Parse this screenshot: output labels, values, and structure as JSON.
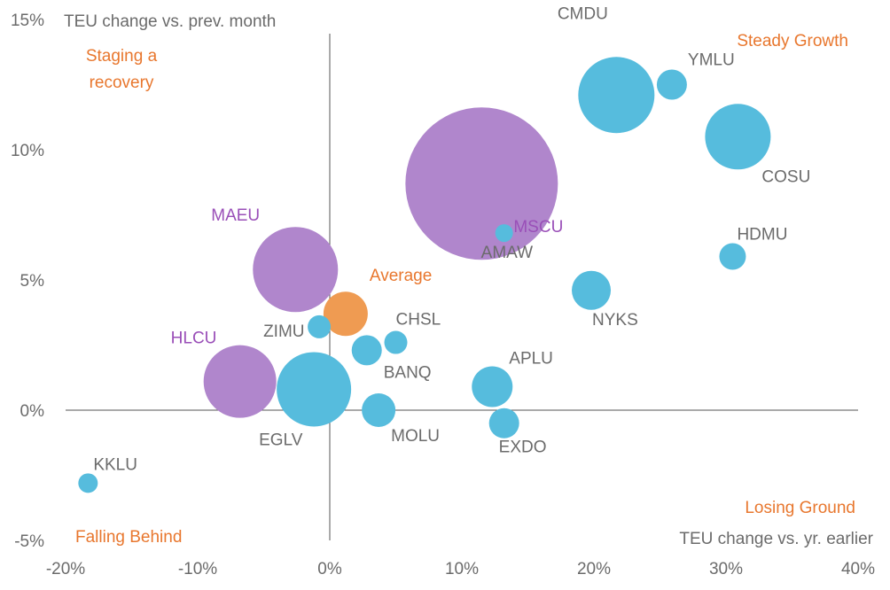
{
  "chart_data": {
    "type": "scatter",
    "subtype": "bubble",
    "ylabel": "TEU change vs. prev. month",
    "xlabel": "TEU change vs. yr. earlier",
    "xlim": [
      -20,
      40
    ],
    "ylim": [
      -5,
      15
    ],
    "x_ticks": [
      "-20%",
      "-10%",
      "0%",
      "10%",
      "20%",
      "30%",
      "40%"
    ],
    "y_ticks": [
      "-5%",
      "0%",
      "5%",
      "10%",
      "15%"
    ],
    "quadrant_labels": {
      "top_left": [
        "Staging a",
        "recovery"
      ],
      "top_right": "Steady Growth",
      "bottom_left": "Falling Behind",
      "bottom_right": "Losing Ground"
    },
    "colors": {
      "blue": "#56bcdd",
      "purple": "#b086cc",
      "orange": "#ef9b52",
      "purple_text": "#9a4fb8",
      "orange_text": "#e8772e",
      "gray_text": "#6b6b6b",
      "axis": "#555555"
    },
    "points": [
      {
        "name": "CMDU",
        "x": 21.7,
        "y": 12.1,
        "size": 43,
        "color": "blue"
      },
      {
        "name": "YMLU",
        "x": 25.9,
        "y": 12.5,
        "size": 17,
        "color": "blue"
      },
      {
        "name": "COSU",
        "x": 30.9,
        "y": 10.5,
        "size": 37,
        "color": "blue"
      },
      {
        "name": "MSCU",
        "x": 11.5,
        "y": 8.7,
        "size": 86,
        "color": "purple"
      },
      {
        "name": "AMAW",
        "x": 13.2,
        "y": 6.8,
        "size": 10,
        "color": "blue"
      },
      {
        "name": "HDMU",
        "x": 30.5,
        "y": 5.9,
        "size": 15,
        "color": "blue"
      },
      {
        "name": "MAEU",
        "x": -2.6,
        "y": 5.4,
        "size": 48,
        "color": "purple"
      },
      {
        "name": "NYKS",
        "x": 19.8,
        "y": 4.6,
        "size": 22,
        "color": "blue"
      },
      {
        "name": "Average",
        "x": 1.2,
        "y": 3.7,
        "size": 25,
        "color": "orange"
      },
      {
        "name": "ZIMU",
        "x": -0.8,
        "y": 3.2,
        "size": 13,
        "color": "blue"
      },
      {
        "name": "CHSL",
        "x": 5.0,
        "y": 2.6,
        "size": 13,
        "color": "blue"
      },
      {
        "name": "BANQ",
        "x": 2.8,
        "y": 2.3,
        "size": 17,
        "color": "blue"
      },
      {
        "name": "HLCU",
        "x": -6.8,
        "y": 1.1,
        "size": 41,
        "color": "purple"
      },
      {
        "name": "EGLV",
        "x": -1.2,
        "y": 0.8,
        "size": 42,
        "color": "blue"
      },
      {
        "name": "APLU",
        "x": 12.3,
        "y": 0.9,
        "size": 23,
        "color": "blue"
      },
      {
        "name": "MOLU",
        "x": 3.7,
        "y": 0.0,
        "size": 19,
        "color": "blue"
      },
      {
        "name": "EXDO",
        "x": 13.2,
        "y": -0.5,
        "size": 17,
        "color": "blue"
      },
      {
        "name": "KKLU",
        "x": -18.3,
        "y": -2.8,
        "size": 11,
        "color": "blue"
      }
    ]
  }
}
